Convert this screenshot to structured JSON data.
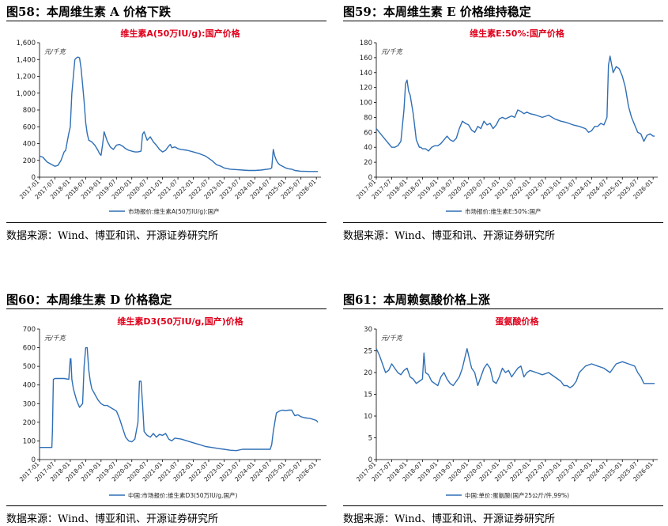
{
  "panels": [
    {
      "id": "p58",
      "title": "图58：本周维生素 A 价格下跌",
      "source": "数据来源：Wind、博亚和讯、开源证券研究所",
      "chart_data": {
        "type": "line",
        "title": "维生素A(50万IU/g):国产价格",
        "unit": "元/千克",
        "legend": "市场报价:维生素A(50万IU/g):国产",
        "ylim": [
          0,
          1600
        ],
        "yticks": [
          0,
          200,
          400,
          600,
          800,
          1000,
          1200,
          1400,
          1600
        ],
        "ytick_labels": [
          "0",
          "200",
          "400",
          "600",
          "800",
          "1,000",
          "1,200",
          "1,400",
          "1,600"
        ],
        "xlim": [
          2017.0,
          2026.15
        ],
        "xticks": [
          "2017-01",
          "2017-07",
          "2018-01",
          "2018-07",
          "2019-01",
          "2019-07",
          "2020-01",
          "2020-07",
          "2021-01",
          "2021-07",
          "2022-01",
          "2022-07",
          "2023-01",
          "2023-07",
          "2024-01",
          "2024-07",
          "2025-01",
          "2025-07",
          "2026-01"
        ],
        "x": [
          2017.0,
          2017.1,
          2017.25,
          2017.4,
          2017.5,
          2017.6,
          2017.7,
          2017.8,
          2017.85,
          2017.9,
          2017.95,
          2018.0,
          2018.05,
          2018.1,
          2018.15,
          2018.2,
          2018.25,
          2018.3,
          2018.35,
          2018.4,
          2018.45,
          2018.5,
          2018.55,
          2018.6,
          2018.7,
          2018.8,
          2018.9,
          2018.95,
          2019.0,
          2019.05,
          2019.1,
          2019.2,
          2019.3,
          2019.4,
          2019.5,
          2019.6,
          2019.7,
          2019.8,
          2019.9,
          2020.0,
          2020.1,
          2020.2,
          2020.3,
          2020.35,
          2020.4,
          2020.5,
          2020.6,
          2020.7,
          2020.8,
          2020.9,
          2021.0,
          2021.1,
          2021.2,
          2021.25,
          2021.3,
          2021.4,
          2021.5,
          2021.6,
          2021.8,
          2022.0,
          2022.2,
          2022.4,
          2022.6,
          2022.75,
          2022.9,
          2023.0,
          2023.2,
          2023.4,
          2023.6,
          2023.8,
          2024.0,
          2024.2,
          2024.4,
          2024.5,
          2024.55,
          2024.6,
          2024.65,
          2024.7,
          2024.75,
          2024.8,
          2024.9,
          2025.0,
          2025.1,
          2025.2,
          2025.3,
          2025.4,
          2025.5,
          2025.6,
          2025.8,
          2026.0,
          2026.05
        ],
        "y": [
          250,
          240,
          180,
          150,
          130,
          140,
          200,
          300,
          320,
          420,
          520,
          600,
          1000,
          1200,
          1400,
          1420,
          1430,
          1420,
          1300,
          1100,
          900,
          650,
          520,
          440,
          420,
          380,
          320,
          280,
          260,
          390,
          540,
          430,
          360,
          330,
          380,
          390,
          370,
          340,
          320,
          310,
          300,
          300,
          310,
          510,
          540,
          440,
          480,
          420,
          380,
          330,
          300,
          320,
          370,
          390,
          350,
          360,
          340,
          330,
          320,
          300,
          280,
          250,
          200,
          150,
          130,
          110,
          95,
          90,
          85,
          80,
          80,
          85,
          95,
          100,
          110,
          330,
          250,
          200,
          170,
          150,
          130,
          110,
          100,
          95,
          80,
          75,
          70,
          70,
          68,
          68,
          68
        ]
      }
    },
    {
      "id": "p59",
      "title": "图59：本周维生素 E 价格维持稳定",
      "source": "数据来源：Wind、博亚和讯、开源证券研究所",
      "chart_data": {
        "type": "line",
        "title": "维生素E:50%:国产价格",
        "unit": "元/千克",
        "legend": "市场报价:维生素E:50%:国产",
        "ylim": [
          0,
          180
        ],
        "yticks": [
          0,
          20,
          40,
          60,
          80,
          100,
          120,
          140,
          160,
          180
        ],
        "ytick_labels": [
          "0",
          "20",
          "40",
          "60",
          "80",
          "100",
          "120",
          "140",
          "160",
          "180"
        ],
        "xlim": [
          2017.0,
          2026.15
        ],
        "xticks": [
          "2017-01",
          "2017-07",
          "2018-01",
          "2018-07",
          "2019-01",
          "2019-07",
          "2020-01",
          "2020-07",
          "2021-01",
          "2021-07",
          "2022-01",
          "2022-07",
          "2023-01",
          "2023-07",
          "2024-01",
          "2024-07",
          "2025-01",
          "2025-07",
          "2026-01"
        ],
        "x": [
          2017.0,
          2017.1,
          2017.2,
          2017.3,
          2017.4,
          2017.5,
          2017.6,
          2017.7,
          2017.8,
          2017.9,
          2017.95,
          2018.0,
          2018.05,
          2018.1,
          2018.2,
          2018.3,
          2018.4,
          2018.45,
          2018.5,
          2018.6,
          2018.7,
          2018.8,
          2018.9,
          2019.0,
          2019.1,
          2019.2,
          2019.3,
          2019.4,
          2019.5,
          2019.6,
          2019.7,
          2019.8,
          2019.9,
          2020.0,
          2020.1,
          2020.2,
          2020.3,
          2020.4,
          2020.5,
          2020.6,
          2020.7,
          2020.8,
          2020.9,
          2021.0,
          2021.1,
          2021.2,
          2021.3,
          2021.4,
          2021.5,
          2021.6,
          2021.7,
          2021.8,
          2021.9,
          2022.0,
          2022.2,
          2022.4,
          2022.6,
          2022.8,
          2023.0,
          2023.1,
          2023.2,
          2023.4,
          2023.6,
          2023.8,
          2023.9,
          2024.0,
          2024.1,
          2024.2,
          2024.3,
          2024.4,
          2024.45,
          2024.5,
          2024.55,
          2024.6,
          2024.7,
          2024.8,
          2024.9,
          2025.0,
          2025.1,
          2025.2,
          2025.3,
          2025.4,
          2025.5,
          2025.6,
          2025.7,
          2025.8,
          2025.9,
          2026.0,
          2026.05
        ],
        "y": [
          65,
          60,
          55,
          50,
          45,
          40,
          40,
          42,
          48,
          90,
          125,
          130,
          115,
          110,
          85,
          50,
          40,
          40,
          38,
          38,
          35,
          40,
          42,
          42,
          45,
          50,
          55,
          50,
          48,
          52,
          65,
          75,
          72,
          70,
          63,
          60,
          68,
          65,
          75,
          70,
          72,
          65,
          70,
          78,
          80,
          78,
          80,
          82,
          80,
          90,
          88,
          85,
          87,
          85,
          83,
          80,
          83,
          78,
          75,
          74,
          73,
          70,
          68,
          65,
          60,
          62,
          68,
          68,
          72,
          70,
          75,
          80,
          150,
          162,
          140,
          148,
          145,
          135,
          120,
          95,
          80,
          70,
          60,
          58,
          48,
          56,
          58,
          55,
          55
        ]
      }
    },
    {
      "id": "p60",
      "title": "图60：本周维生素 D 价格稳定",
      "source": "数据来源：Wind、博亚和讯、开源证券研究所",
      "chart_data": {
        "type": "line",
        "title": "维生素D3(50万IU/g,国产)价格",
        "unit": "元/千克",
        "legend": "中国:市场报价:维生素D3(50万IU/g,国产)",
        "ylim": [
          0,
          700
        ],
        "yticks": [
          0,
          100,
          200,
          300,
          400,
          500,
          600,
          700
        ],
        "ytick_labels": [
          "0",
          "100",
          "200",
          "300",
          "400",
          "500",
          "600",
          "700"
        ],
        "xlim": [
          2017.0,
          2026.15
        ],
        "xticks": [
          "2017-01",
          "2017-07",
          "2018-01",
          "2018-07",
          "2019-01",
          "2019-07",
          "2020-01",
          "2020-07",
          "2021-01",
          "2021-07",
          "2022-01",
          "2022-07",
          "2023-01",
          "2023-07",
          "2024-01",
          "2024-07",
          "2025-01",
          "2025-07",
          "2026-01"
        ],
        "x": [
          2017.0,
          2017.2,
          2017.4,
          2017.42,
          2017.45,
          2017.5,
          2017.6,
          2017.8,
          2017.95,
          2018.0,
          2018.02,
          2018.05,
          2018.1,
          2018.2,
          2018.3,
          2018.4,
          2018.45,
          2018.5,
          2018.55,
          2018.6,
          2018.65,
          2018.7,
          2018.8,
          2018.9,
          2019.0,
          2019.1,
          2019.2,
          2019.3,
          2019.5,
          2019.6,
          2019.7,
          2019.8,
          2019.9,
          2020.0,
          2020.1,
          2020.2,
          2020.25,
          2020.3,
          2020.35,
          2020.4,
          2020.5,
          2020.6,
          2020.7,
          2020.8,
          2020.9,
          2021.0,
          2021.1,
          2021.2,
          2021.3,
          2021.4,
          2021.6,
          2021.8,
          2022.0,
          2022.2,
          2022.4,
          2022.6,
          2022.8,
          2023.0,
          2023.2,
          2023.4,
          2023.6,
          2023.8,
          2024.0,
          2024.2,
          2024.4,
          2024.5,
          2024.55,
          2024.6,
          2024.7,
          2024.8,
          2024.9,
          2025.0,
          2025.1,
          2025.2,
          2025.3,
          2025.4,
          2025.5,
          2025.6,
          2025.8,
          2026.0,
          2026.05
        ],
        "y": [
          65,
          65,
          65,
          150,
          430,
          435,
          435,
          435,
          430,
          540,
          540,
          430,
          380,
          320,
          280,
          300,
          500,
          600,
          600,
          480,
          420,
          380,
          350,
          320,
          300,
          290,
          290,
          280,
          260,
          220,
          170,
          120,
          100,
          95,
          110,
          200,
          420,
          420,
          300,
          150,
          130,
          120,
          140,
          120,
          135,
          130,
          140,
          110,
          100,
          115,
          110,
          100,
          90,
          80,
          70,
          65,
          60,
          55,
          50,
          48,
          55,
          55,
          55,
          55,
          55,
          55,
          80,
          150,
          250,
          260,
          265,
          262,
          265,
          265,
          235,
          240,
          230,
          225,
          220,
          210,
          200
        ]
      }
    },
    {
      "id": "p61",
      "title": "图61：本周赖氨酸价格上涨",
      "source": "数据来源：Wind、博亚和讯、开源证券研究所",
      "chart_data": {
        "type": "line",
        "title": "蛋氨酸价格",
        "unit": "元/千克",
        "legend": "中国:单价:蛋氨酸(国产25公斤/件,99%)",
        "ylim": [
          0,
          30
        ],
        "yticks": [
          0,
          5,
          10,
          15,
          20,
          25,
          30
        ],
        "ytick_labels": [
          "0",
          "5",
          "10",
          "15",
          "20",
          "25",
          "30"
        ],
        "xlim": [
          2017.0,
          2026.15
        ],
        "xticks": [
          "2017-01",
          "2017-07",
          "2018-01",
          "2018-07",
          "2019-01",
          "2019-07",
          "2020-01",
          "2020-07",
          "2021-01",
          "2021-07",
          "2022-01",
          "2022-07",
          "2023-01",
          "2023-07",
          "2024-01",
          "2024-07",
          "2025-01",
          "2025-07",
          "2026-01"
        ],
        "x": [
          2017.0,
          2017.1,
          2017.2,
          2017.3,
          2017.4,
          2017.5,
          2017.6,
          2017.7,
          2017.8,
          2017.9,
          2018.0,
          2018.1,
          2018.2,
          2018.3,
          2018.4,
          2018.5,
          2018.55,
          2018.6,
          2018.7,
          2018.8,
          2018.9,
          2019.0,
          2019.1,
          2019.2,
          2019.3,
          2019.4,
          2019.5,
          2019.6,
          2019.7,
          2019.8,
          2019.9,
          2019.95,
          2020.0,
          2020.1,
          2020.2,
          2020.3,
          2020.4,
          2020.5,
          2020.6,
          2020.7,
          2020.8,
          2020.9,
          2021.0,
          2021.1,
          2021.2,
          2021.3,
          2021.4,
          2021.5,
          2021.6,
          2021.7,
          2021.8,
          2021.9,
          2022.0,
          2022.2,
          2022.4,
          2022.6,
          2022.8,
          2023.0,
          2023.1,
          2023.2,
          2023.3,
          2023.4,
          2023.5,
          2023.6,
          2023.8,
          2024.0,
          2024.2,
          2024.4,
          2024.6,
          2024.8,
          2025.0,
          2025.2,
          2025.4,
          2025.5,
          2025.6,
          2025.7,
          2025.8,
          2025.9,
          2026.0,
          2026.05
        ],
        "y": [
          25.5,
          24,
          22,
          20,
          20.5,
          22,
          21,
          20,
          19.5,
          20.5,
          21,
          19,
          18.5,
          17.5,
          18,
          18.5,
          24.5,
          20,
          19.5,
          18,
          17.5,
          17,
          19,
          20,
          18.5,
          17.5,
          17,
          18,
          19,
          21,
          24,
          25.5,
          24,
          21,
          20,
          17,
          19,
          21,
          22,
          21,
          18,
          17.5,
          19,
          21,
          20,
          20.5,
          19,
          20,
          21,
          21.5,
          19,
          20,
          20.5,
          20,
          19.5,
          20,
          19,
          18,
          17,
          17,
          16.5,
          17,
          18,
          20,
          21.5,
          22,
          21.5,
          21,
          20,
          22,
          22.5,
          22,
          21.5,
          20,
          19,
          17.5,
          17.5,
          17.5,
          17.5,
          17.5
        ]
      }
    }
  ]
}
